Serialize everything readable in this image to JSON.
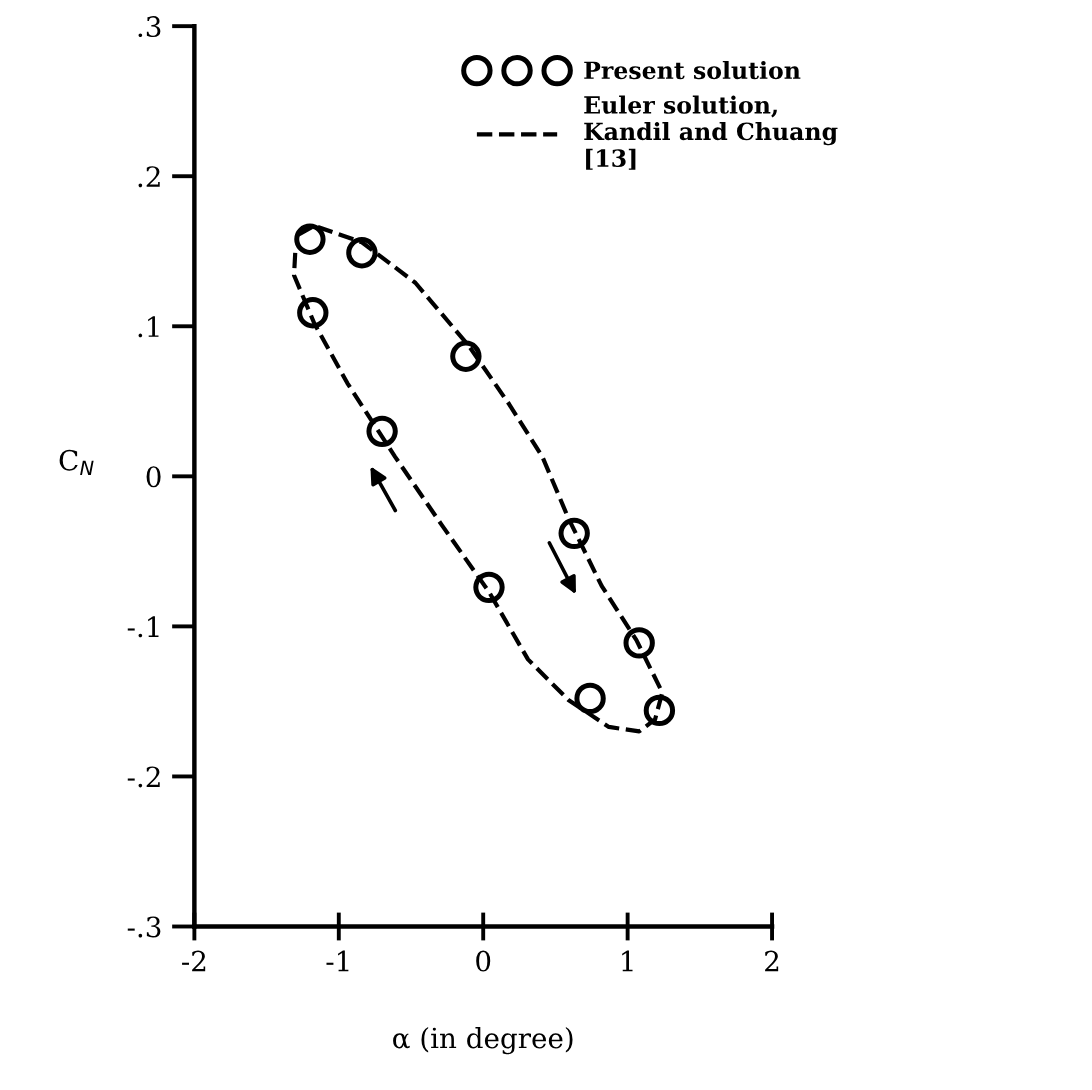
{
  "chart_data": {
    "type": "scatter",
    "xlabel": "α (in degree)",
    "ylabel": "C$_{N}$",
    "xlim": [
      -2,
      2
    ],
    "ylim": [
      -0.3,
      0.3
    ],
    "xticks": [
      -2,
      -1,
      0,
      1,
      2
    ],
    "yticks": [
      {
        "value": -0.3,
        "label": "-.3"
      },
      {
        "value": -0.2,
        "label": "-.2"
      },
      {
        "value": -0.1,
        "label": "-.1"
      },
      0,
      {
        "value": 0.1,
        "label": ".1"
      },
      {
        "value": 0.2,
        "label": ".2"
      },
      {
        "value": 0.3,
        "label": ".3"
      }
    ],
    "grid": false,
    "legend": "top right",
    "series": [
      {
        "name": "Present solution",
        "marker": "circle",
        "color": "#000000",
        "x": [
          -1.2,
          -0.84,
          -1.18,
          -0.12,
          -0.7,
          0.63,
          0.04,
          1.08,
          0.74,
          1.22
        ],
        "values": [
          0.158,
          0.149,
          0.109,
          0.08,
          0.03,
          -0.038,
          -0.074,
          -0.111,
          -0.148,
          -0.156
        ]
      },
      {
        "name": "Euler solution,\nKandil and Chuang\n[13]",
        "type": "line",
        "line_style": "dashed",
        "marker": "none",
        "color": "#000000",
        "x": [
          -1.28,
          -1.17,
          -0.84,
          -0.47,
          -0.1,
          0.18,
          0.41,
          0.59,
          0.82,
          1.06,
          1.24,
          1.19,
          1.08,
          0.87,
          0.59,
          0.31,
          0.04,
          -0.29,
          -0.61,
          -0.94,
          -1.17,
          -1.31,
          -1.3
        ],
        "values": [
          0.161,
          0.167,
          0.156,
          0.129,
          0.087,
          0.048,
          0.013,
          -0.028,
          -0.073,
          -0.109,
          -0.144,
          -0.162,
          -0.17,
          -0.167,
          -0.149,
          -0.122,
          -0.077,
          -0.032,
          0.013,
          0.062,
          0.102,
          0.134,
          0.152
        ]
      }
    ]
  }
}
